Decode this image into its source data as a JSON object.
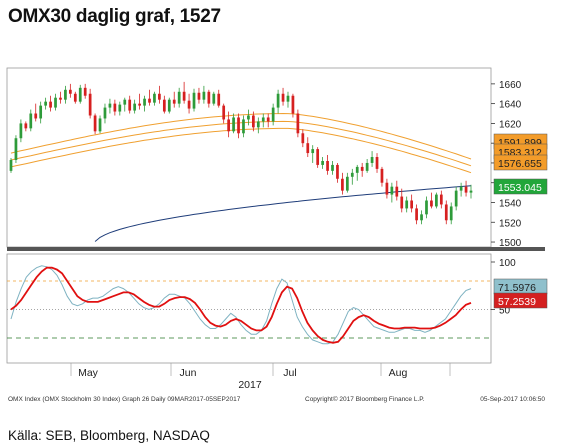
{
  "title": "OMX30 daglig graf, 1527",
  "source_line": "Källa: SEB, Bloomberg, NASDAQ",
  "footer_small": {
    "left": "OMX Index (OMX Stockholm 30 Index) Graph 26 Daily 09MAR2017-05SEP2017",
    "middle": "Copyright© 2017 Bloomberg Finance L.P.",
    "right": "05-Sep-2017 10:06:50"
  },
  "colors": {
    "up": "#2e9b3a",
    "down": "#d62020",
    "band": "#f0a030",
    "ma200": "#1f3d7a",
    "stoch_k": "#7fb3c2",
    "stoch_d": "#e01010",
    "tag_green": "#22a63a",
    "tag_orange": "#f39c2a",
    "tag_red": "#d42020",
    "tag_teal": "#8fc0cc"
  },
  "chart_data": [
    {
      "type": "candlestick",
      "title": "OMX30 daglig graf, 1527",
      "x_months": [
        "May",
        "Jun",
        "Jul",
        "Aug"
      ],
      "x_year": "2017",
      "y_ticks": [
        1500,
        1520,
        1540,
        1560,
        1580,
        1600,
        1620,
        1640,
        1660
      ],
      "ylim": [
        1497,
        1672
      ],
      "price_tags": [
        {
          "label": "1591.899",
          "value": 1591.9,
          "color": "#f39c2a"
        },
        {
          "label": "1583.312",
          "value": 1583.3,
          "color": "#f39c2a"
        },
        {
          "label": "1576.655",
          "value": 1576.7,
          "color": "#f39c2a"
        },
        {
          "label": "1553.045",
          "value": 1553.0,
          "color": "#22a63a"
        }
      ],
      "candles": [
        [
          1572,
          1585,
          1570,
          1583
        ],
        [
          1583,
          1608,
          1580,
          1605
        ],
        [
          1605,
          1624,
          1601,
          1620
        ],
        [
          1620,
          1622,
          1612,
          1615
        ],
        [
          1615,
          1634,
          1612,
          1630
        ],
        [
          1630,
          1640,
          1622,
          1625
        ],
        [
          1625,
          1642,
          1620,
          1638
        ],
        [
          1638,
          1646,
          1634,
          1642
        ],
        [
          1642,
          1648,
          1632,
          1636
        ],
        [
          1636,
          1650,
          1633,
          1646
        ],
        [
          1646,
          1652,
          1640,
          1644
        ],
        [
          1644,
          1658,
          1640,
          1654
        ],
        [
          1654,
          1660,
          1646,
          1650
        ],
        [
          1650,
          1652,
          1640,
          1642
        ],
        [
          1642,
          1659,
          1640,
          1656
        ],
        [
          1656,
          1660,
          1645,
          1648
        ],
        [
          1650,
          1655,
          1625,
          1628
        ],
        [
          1628,
          1630,
          1609,
          1612
        ],
        [
          1612,
          1628,
          1610,
          1625
        ],
        [
          1625,
          1640,
          1620,
          1636
        ],
        [
          1636,
          1645,
          1630,
          1640
        ],
        [
          1640,
          1644,
          1628,
          1632
        ],
        [
          1632,
          1642,
          1628,
          1639
        ],
        [
          1639,
          1646,
          1632,
          1644
        ],
        [
          1644,
          1648,
          1630,
          1633
        ],
        [
          1633,
          1644,
          1630,
          1640
        ],
        [
          1640,
          1650,
          1634,
          1638
        ],
        [
          1638,
          1648,
          1632,
          1645
        ],
        [
          1645,
          1654,
          1638,
          1641
        ],
        [
          1641,
          1652,
          1638,
          1650
        ],
        [
          1650,
          1658,
          1640,
          1644
        ],
        [
          1644,
          1648,
          1630,
          1632
        ],
        [
          1632,
          1646,
          1630,
          1644
        ],
        [
          1644,
          1652,
          1636,
          1640
        ],
        [
          1640,
          1656,
          1636,
          1652
        ],
        [
          1652,
          1662,
          1640,
          1643
        ],
        [
          1643,
          1650,
          1630,
          1635
        ],
        [
          1635,
          1655,
          1632,
          1651
        ],
        [
          1651,
          1656,
          1640,
          1644
        ],
        [
          1644,
          1658,
          1640,
          1652
        ],
        [
          1652,
          1654,
          1636,
          1640
        ],
        [
          1640,
          1652,
          1638,
          1650
        ],
        [
          1650,
          1654,
          1636,
          1638
        ],
        [
          1638,
          1640,
          1620,
          1624
        ],
        [
          1624,
          1632,
          1606,
          1612
        ],
        [
          1612,
          1630,
          1610,
          1626
        ],
        [
          1626,
          1630,
          1605,
          1610
        ],
        [
          1610,
          1628,
          1606,
          1624
        ],
        [
          1624,
          1634,
          1618,
          1628
        ],
        [
          1628,
          1632,
          1612,
          1616
        ],
        [
          1616,
          1626,
          1610,
          1622
        ],
        [
          1622,
          1630,
          1616,
          1626
        ],
        [
          1626,
          1630,
          1616,
          1622
        ],
        [
          1622,
          1640,
          1618,
          1636
        ],
        [
          1636,
          1654,
          1630,
          1650
        ],
        [
          1650,
          1656,
          1638,
          1642
        ],
        [
          1642,
          1652,
          1636,
          1648
        ],
        [
          1648,
          1650,
          1626,
          1630
        ],
        [
          1630,
          1634,
          1606,
          1610
        ],
        [
          1610,
          1614,
          1596,
          1600
        ],
        [
          1600,
          1606,
          1586,
          1590
        ],
        [
          1590,
          1598,
          1580,
          1594
        ],
        [
          1594,
          1596,
          1575,
          1578
        ],
        [
          1578,
          1586,
          1574,
          1582
        ],
        [
          1582,
          1588,
          1568,
          1572
        ],
        [
          1572,
          1582,
          1568,
          1578
        ],
        [
          1578,
          1580,
          1560,
          1564
        ],
        [
          1564,
          1570,
          1548,
          1552
        ],
        [
          1552,
          1570,
          1550,
          1566
        ],
        [
          1566,
          1574,
          1558,
          1570
        ],
        [
          1570,
          1578,
          1562,
          1576
        ],
        [
          1576,
          1580,
          1566,
          1572
        ],
        [
          1572,
          1584,
          1570,
          1580
        ],
        [
          1580,
          1592,
          1576,
          1586
        ],
        [
          1586,
          1590,
          1570,
          1574
        ],
        [
          1574,
          1576,
          1556,
          1560
        ],
        [
          1560,
          1564,
          1544,
          1548
        ],
        [
          1548,
          1560,
          1540,
          1556
        ],
        [
          1556,
          1562,
          1542,
          1546
        ],
        [
          1546,
          1554,
          1530,
          1534
        ],
        [
          1534,
          1546,
          1530,
          1542
        ],
        [
          1542,
          1548,
          1530,
          1534
        ],
        [
          1534,
          1538,
          1518,
          1522
        ],
        [
          1522,
          1532,
          1518,
          1528
        ],
        [
          1528,
          1546,
          1524,
          1542
        ],
        [
          1542,
          1550,
          1534,
          1536
        ],
        [
          1536,
          1550,
          1534,
          1548
        ],
        [
          1548,
          1552,
          1534,
          1538
        ],
        [
          1538,
          1542,
          1518,
          1522
        ],
        [
          1522,
          1540,
          1518,
          1536
        ],
        [
          1536,
          1556,
          1532,
          1552
        ],
        [
          1552,
          1560,
          1546,
          1556
        ],
        [
          1556,
          1562,
          1546,
          1550
        ],
        [
          1550,
          1558,
          1544,
          1552
        ]
      ],
      "bands": {
        "upper": [
          1590,
          1630
        ],
        "middle": [
          1583,
          1622
        ],
        "lower": [
          1576,
          1615
        ]
      },
      "ma200_range": [
        1497,
        1557
      ]
    },
    {
      "type": "line",
      "title": "",
      "y_ticks_labels": [
        "100",
        "50"
      ],
      "ylim": [
        0,
        100
      ],
      "reference_lines": [
        80,
        50,
        20
      ],
      "series": [
        {
          "name": "",
          "color": "#7fb3c2",
          "label": "71.5976",
          "values": [
            40,
            58,
            72,
            84,
            90,
            94,
            96,
            95,
            92,
            86,
            76,
            64,
            56,
            54,
            56,
            60,
            62,
            62,
            64,
            68,
            72,
            74,
            72,
            68,
            62,
            56,
            52,
            50,
            52,
            56,
            62,
            66,
            66,
            64,
            62,
            56,
            48,
            40,
            34,
            30,
            30,
            34,
            40,
            46,
            42,
            34,
            28,
            24,
            24,
            28,
            38,
            56,
            72,
            82,
            78,
            60,
            42,
            32,
            24,
            18,
            16,
            14,
            14,
            16,
            24,
            36,
            48,
            52,
            50,
            44,
            38,
            32,
            30,
            28,
            26,
            26,
            28,
            30,
            30,
            28,
            28,
            26,
            28,
            32,
            36,
            40,
            48,
            56,
            64,
            70,
            72
          ]
        },
        {
          "name": "",
          "color": "#e01010",
          "label": "57.2539",
          "values": [
            50,
            54,
            60,
            68,
            76,
            84,
            90,
            94,
            94,
            92,
            88,
            80,
            72,
            64,
            60,
            58,
            58,
            58,
            60,
            62,
            64,
            66,
            68,
            68,
            66,
            62,
            58,
            55,
            53,
            53,
            56,
            60,
            62,
            63,
            63,
            61,
            57,
            50,
            42,
            36,
            33,
            32,
            34,
            38,
            40,
            38,
            34,
            30,
            28,
            28,
            32,
            42,
            56,
            68,
            74,
            72,
            62,
            48,
            36,
            28,
            22,
            18,
            16,
            15,
            16,
            22,
            30,
            38,
            42,
            44,
            42,
            38,
            35,
            33,
            31,
            30,
            30,
            31,
            31,
            31,
            30,
            30,
            30,
            31,
            33,
            36,
            40,
            44,
            50,
            55,
            57
          ]
        }
      ]
    }
  ]
}
